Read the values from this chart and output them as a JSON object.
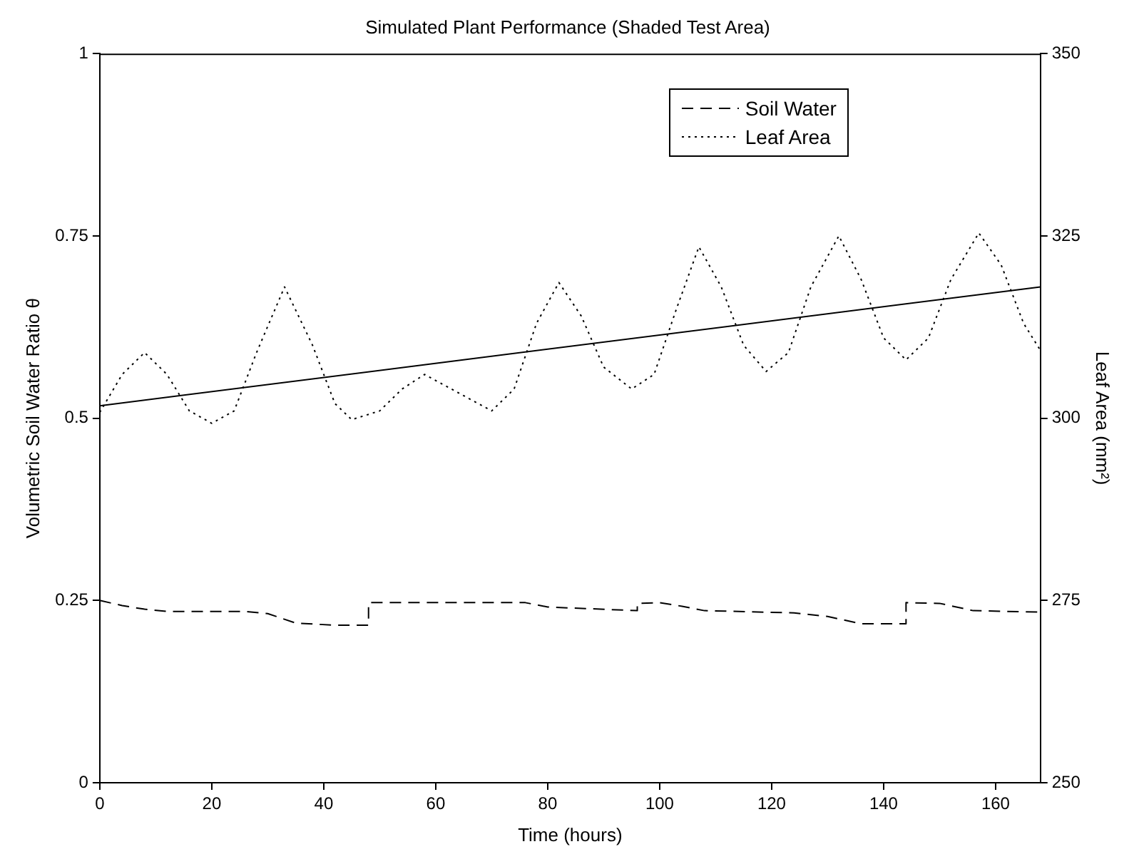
{
  "chart_data": {
    "type": "line",
    "title": "Simulated Plant Performance (Shaded Test Area)",
    "xlabel": "Time (hours)",
    "ylabel": "Volumetric Soil Water Ratio θ",
    "y2label": "Leaf Area (mm²)",
    "xlim": [
      0,
      168
    ],
    "xticks": [
      0,
      20,
      40,
      60,
      80,
      100,
      120,
      140,
      160
    ],
    "ylim": [
      0,
      1
    ],
    "yticks": [
      0,
      0.25,
      0.5,
      0.75,
      1
    ],
    "y2lim": [
      250,
      350
    ],
    "y2ticks": [
      250,
      275,
      300,
      325,
      350
    ],
    "grid": false,
    "legend": "top right",
    "marker": "none",
    "series": [
      {
        "name": "Soil Water",
        "color": "#000000",
        "line_style": "dashed",
        "x": [
          0,
          4,
          8,
          12,
          26,
          30,
          35,
          42,
          48,
          48,
          76,
          80,
          96,
          96,
          100,
          104,
          108,
          124,
          130,
          136,
          144,
          144,
          150,
          156,
          168
        ],
        "values": [
          0.25,
          0.243,
          0.238,
          0.235,
          0.235,
          0.232,
          0.219,
          0.216,
          0.216,
          0.247,
          0.247,
          0.241,
          0.236,
          0.246,
          0.247,
          0.242,
          0.236,
          0.233,
          0.228,
          0.218,
          0.218,
          0.247,
          0.246,
          0.236,
          0.234
        ]
      },
      {
        "name": "Leaf Area",
        "color": "#000000",
        "line_style": "dotted",
        "axis": "y2",
        "x": [
          0,
          4,
          8,
          12,
          16,
          20,
          24,
          28,
          33,
          38,
          42,
          45,
          50,
          54,
          58,
          64,
          70,
          74,
          78,
          82,
          86,
          90,
          95,
          99,
          103,
          107,
          111,
          115,
          119,
          123,
          127,
          132,
          136,
          140,
          144,
          148,
          152,
          157,
          161,
          165,
          168
        ],
        "values": [
          300.8,
          306,
          309,
          306,
          301,
          299.3,
          301,
          309,
          318,
          310,
          302,
          299.8,
          301,
          304,
          306,
          303.5,
          301,
          304,
          313,
          318.6,
          314,
          307,
          304,
          306,
          315,
          323.5,
          318,
          310,
          306.4,
          309,
          318,
          325,
          319,
          311,
          308,
          311,
          319,
          325.4,
          321,
          313,
          309.3
        ]
      },
      {
        "color": "#000000",
        "line_style": "solid",
        "x": [
          0,
          168
        ],
        "values": [
          0.517,
          0.68
        ]
      }
    ]
  }
}
